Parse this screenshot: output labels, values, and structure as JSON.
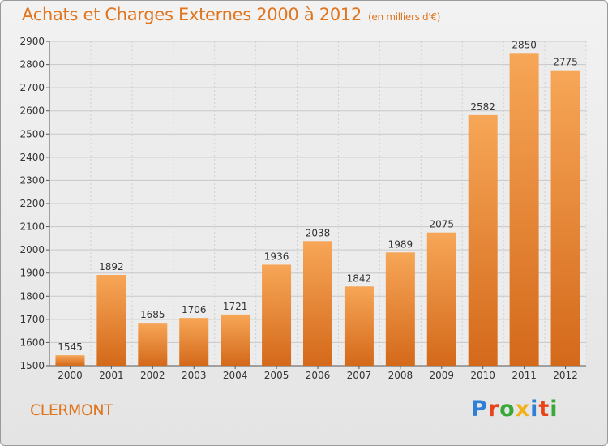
{
  "header": {
    "title": "Achats et Charges Externes 2000 à 2012",
    "subtitle": "(en milliers d'€)"
  },
  "footer": {
    "city": "CLERMONT",
    "brand": "Proxiti",
    "brand_colors": [
      "#2f7fd6",
      "#e8431a",
      "#38a83a",
      "#f2b21a",
      "#2f7fd6",
      "#e8431a",
      "#38a83a"
    ]
  },
  "chart_data": {
    "type": "bar",
    "categories": [
      "2000",
      "2001",
      "2002",
      "2003",
      "2004",
      "2005",
      "2006",
      "2007",
      "2008",
      "2009",
      "2010",
      "2011",
      "2012"
    ],
    "values": [
      1545,
      1892,
      1685,
      1706,
      1721,
      1936,
      2038,
      1842,
      1989,
      2075,
      2582,
      2850,
      2775
    ],
    "ylim": [
      1500,
      2900
    ],
    "yticks": [
      1500,
      1600,
      1700,
      1800,
      1900,
      2000,
      2100,
      2200,
      2300,
      2400,
      2500,
      2600,
      2700,
      2800,
      2900
    ],
    "grid": true,
    "bar_color": "#f08a2c",
    "bar_color_light": "#f7a657",
    "bar_color_dark": "#d4691a"
  }
}
